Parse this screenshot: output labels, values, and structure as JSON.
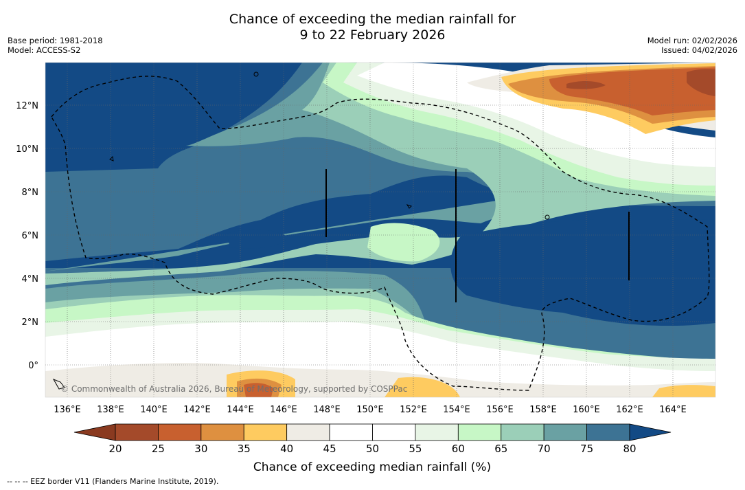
{
  "header": {
    "title_line1": "Chance of exceeding the median rainfall for",
    "title_line2": "9 to 22 February 2026",
    "base_period": "Base period: 1981-2018",
    "model": "Model: ACCESS-S2",
    "model_run": "Model run: 02/02/2026",
    "issued": "Issued: 04/02/2026"
  },
  "map": {
    "lon_labels": [
      "136°E",
      "138°E",
      "140°E",
      "142°E",
      "144°E",
      "146°E",
      "148°E",
      "150°E",
      "152°E",
      "154°E",
      "156°E",
      "158°E",
      "160°E",
      "162°E",
      "164°E"
    ],
    "lat_labels": [
      "12°N",
      "10°N",
      "8°N",
      "6°N",
      "4°N",
      "2°N",
      "0°"
    ],
    "copyright": "© Commonwealth of Australia 2026, Bureau of Meteorology, supported by COSPPac"
  },
  "colorbar": {
    "ticks": [
      "20",
      "25",
      "30",
      "35",
      "40",
      "45",
      "50",
      "55",
      "60",
      "65",
      "70",
      "75",
      "80"
    ],
    "colors": [
      "#a44a2a",
      "#c8602f",
      "#de9040",
      "#fecb60",
      "#efece5",
      "#ffffff",
      "#ffffff",
      "#e8f5e6",
      "#c7f7c6",
      "#9bcfb8",
      "#6aa1a3",
      "#3d7394"
    ],
    "under_color": "#8a3a20",
    "over_color": "#134a85",
    "label": "Chance of exceeding median rainfall (%)"
  },
  "legend": {
    "eez_note": "--  --  -- EEZ border V11 (Flanders Marine Institute, 2019)."
  }
}
